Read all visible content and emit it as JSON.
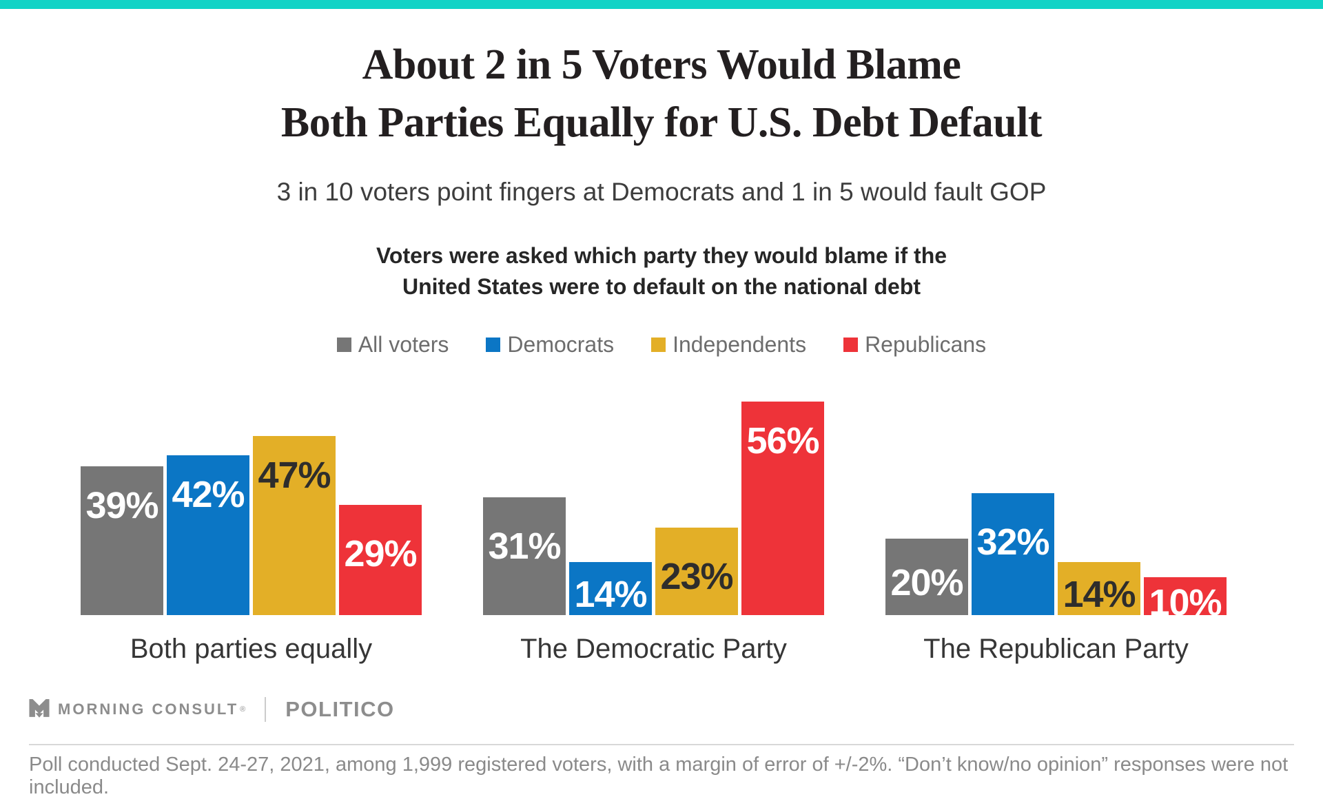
{
  "brand": {
    "accent_color": "#11d3c6"
  },
  "header": {
    "title_line1": "About 2 in 5 Voters Would Blame",
    "title_line2": "Both Parties Equally for U.S. Debt Default",
    "subtitle": "3 in 10 voters point fingers at Democrats and 1 in 5 would fault GOP"
  },
  "question": {
    "line1": "Voters were asked which party they would blame if the",
    "line2": "United States were to default on the national debt"
  },
  "chart_data": {
    "type": "bar",
    "title": "Voters were asked which party they would blame if the United States were to default on the national debt",
    "categories": [
      "Both parties equally",
      "The Democratic Party",
      "The Republican Party"
    ],
    "series": [
      {
        "name": "All voters",
        "color": "#767676",
        "label_color": "#ffffff",
        "values": [
          39,
          31,
          20
        ]
      },
      {
        "name": "Democrats",
        "color": "#0b76c5",
        "label_color": "#ffffff",
        "values": [
          42,
          14,
          32
        ]
      },
      {
        "name": "Independents",
        "color": "#e3af27",
        "label_color": "#2e2d2c",
        "values": [
          47,
          23,
          14
        ]
      },
      {
        "name": "Republicans",
        "color": "#ee3339",
        "label_color": "#ffffff",
        "values": [
          29,
          56,
          10
        ]
      }
    ],
    "value_suffix": "%",
    "ylim": [
      0,
      60
    ],
    "grid": false,
    "legend_position": "top"
  },
  "footer": {
    "logo_text": "MORNING CONSULT",
    "logo_reg": "®",
    "politico": "POLITICO",
    "footnote": "Poll conducted Sept. 24-27, 2021, among 1,999 registered voters, with a margin of error of +/-2%. “Don’t know/no opinion” responses were not included."
  }
}
